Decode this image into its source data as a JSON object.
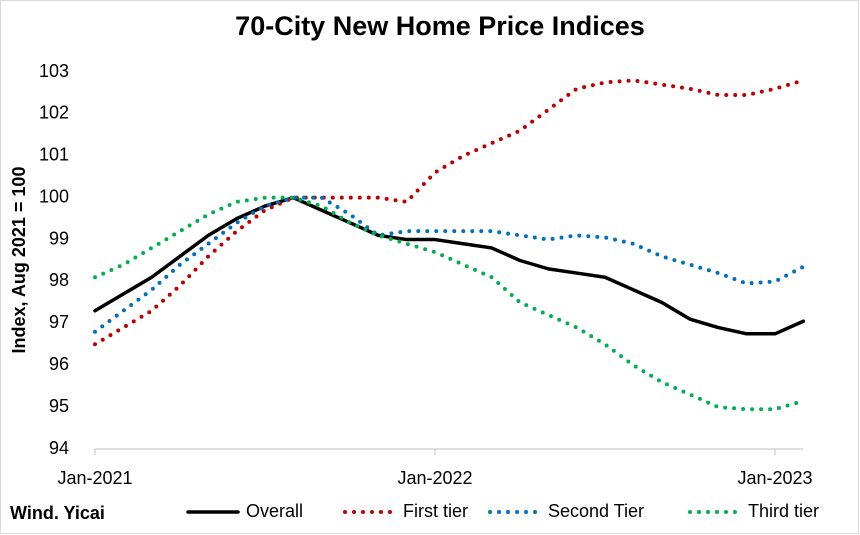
{
  "chart_data": {
    "type": "line",
    "title": "70-City New Home Price Indices",
    "y_label": "Index, Aug 2021 = 100",
    "source": "Wind. Yicai",
    "categories": [
      "Jan-2021",
      null,
      null,
      null,
      null,
      null,
      null,
      null,
      null,
      null,
      null,
      null,
      "Jan-2022",
      null,
      null,
      null,
      null,
      null,
      null,
      null,
      null,
      null,
      null,
      null,
      "Jan-2023",
      null
    ],
    "series": [
      {
        "name": "Overall",
        "color": "#000000",
        "line_style": "solid",
        "values": [
          97.3,
          97.7,
          98.1,
          98.6,
          99.1,
          99.5,
          99.8,
          100,
          99.7,
          99.4,
          99.1,
          99.0,
          99.0,
          98.9,
          98.8,
          98.5,
          98.3,
          98.2,
          98.1,
          97.8,
          97.5,
          97.1,
          96.9,
          96.75,
          96.75,
          97.05
        ]
      },
      {
        "name": "First tier",
        "color": "#c00000",
        "line_style": "dotted",
        "values": [
          96.5,
          96.9,
          97.3,
          97.9,
          98.6,
          99.2,
          99.7,
          100,
          100,
          100,
          100,
          99.9,
          100.6,
          101.0,
          101.3,
          101.6,
          102.1,
          102.6,
          102.75,
          102.8,
          102.7,
          102.6,
          102.45,
          102.45,
          102.6,
          102.8
        ]
      },
      {
        "name": "Second Tier",
        "color": "#0070c0",
        "line_style": "dotted",
        "values": [
          96.8,
          97.3,
          97.8,
          98.4,
          98.9,
          99.4,
          99.8,
          100,
          100,
          99.6,
          99.1,
          99.2,
          99.2,
          99.2,
          99.2,
          99.1,
          99.0,
          99.1,
          99.05,
          98.9,
          98.6,
          98.4,
          98.2,
          97.95,
          98.0,
          98.35
        ]
      },
      {
        "name": "Third tier",
        "color": "#00b050",
        "line_style": "dotted",
        "values": [
          98.1,
          98.4,
          98.8,
          99.2,
          99.6,
          99.9,
          100,
          100,
          99.8,
          99.4,
          99.1,
          98.9,
          98.7,
          98.4,
          98.1,
          97.5,
          97.2,
          96.9,
          96.5,
          96.0,
          95.6,
          95.3,
          95.0,
          94.95,
          94.95,
          95.15
        ]
      }
    ],
    "ylim": [
      94,
      103
    ],
    "yticks": [
      94,
      95,
      96,
      97,
      98,
      99,
      100,
      101,
      102,
      103
    ],
    "grid": false,
    "legend": "bottom"
  }
}
